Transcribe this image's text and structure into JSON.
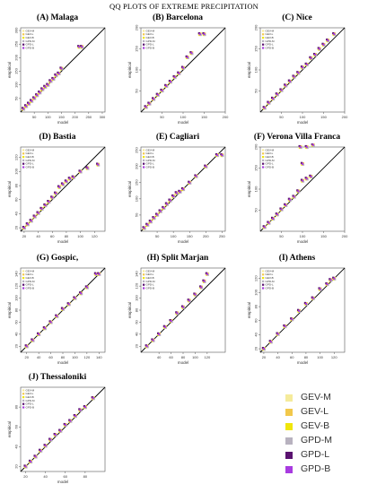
{
  "figure_title": "QQ PLOTS OF EXTREME PRECIPITATION",
  "legend": [
    {
      "label": "GEV-M",
      "color": "#f5eb9b"
    },
    {
      "label": "GEV-L",
      "color": "#f2c84b"
    },
    {
      "label": "GEV-B",
      "color": "#f0e60a"
    },
    {
      "label": "GPD-M",
      "color": "#b8b2bf"
    },
    {
      "label": "GPD-L",
      "color": "#5a1270"
    },
    {
      "label": "GPD-B",
      "color": "#a83be0"
    }
  ],
  "chart_data": [
    {
      "type": "scatter",
      "title": "(A) Malaga",
      "xlabel": "model",
      "ylabel": "empirical",
      "xlim": [
        0,
        310
      ],
      "ylim": [
        0,
        310
      ],
      "xticks": [
        50,
        100,
        150,
        200,
        250,
        300
      ],
      "yticks": [
        50,
        100,
        150,
        200,
        250,
        300
      ],
      "points": [
        [
          10,
          12
        ],
        [
          20,
          22
        ],
        [
          30,
          31
        ],
        [
          40,
          41
        ],
        [
          50,
          51
        ],
        [
          60,
          62
        ],
        [
          70,
          72
        ],
        [
          80,
          84
        ],
        [
          90,
          93
        ],
        [
          100,
          100
        ],
        [
          110,
          114
        ],
        [
          120,
          122
        ],
        [
          130,
          135
        ],
        [
          140,
          142
        ],
        [
          150,
          160
        ],
        [
          215,
          240
        ],
        [
          225,
          240
        ]
      ]
    },
    {
      "type": "scatter",
      "title": "(B) Barcelona",
      "xlabel": "model",
      "ylabel": "empirical",
      "xlim": [
        0,
        200
      ],
      "ylim": [
        0,
        200
      ],
      "xticks": [
        50,
        100,
        150,
        200
      ],
      "yticks": [
        50,
        100,
        150,
        200
      ],
      "points": [
        [
          12,
          12
        ],
        [
          20,
          20
        ],
        [
          30,
          31
        ],
        [
          40,
          41
        ],
        [
          50,
          51
        ],
        [
          60,
          62
        ],
        [
          70,
          72
        ],
        [
          80,
          83
        ],
        [
          90,
          92
        ],
        [
          100,
          105
        ],
        [
          110,
          130
        ],
        [
          120,
          140
        ],
        [
          140,
          185
        ],
        [
          150,
          185
        ]
      ]
    },
    {
      "type": "scatter",
      "title": "(C) Nice",
      "xlabel": "model",
      "ylabel": "empirical",
      "xlim": [
        0,
        200
      ],
      "ylim": [
        0,
        200
      ],
      "xticks": [
        50,
        100,
        150,
        200
      ],
      "yticks": [
        50,
        100,
        150,
        200
      ],
      "points": [
        [
          10,
          10
        ],
        [
          20,
          22
        ],
        [
          30,
          32
        ],
        [
          40,
          42
        ],
        [
          50,
          52
        ],
        [
          60,
          63
        ],
        [
          70,
          73
        ],
        [
          80,
          84
        ],
        [
          90,
          93
        ],
        [
          100,
          106
        ],
        [
          110,
          113
        ],
        [
          120,
          128
        ],
        [
          130,
          136
        ],
        [
          140,
          150
        ],
        [
          150,
          160
        ],
        [
          160,
          170
        ],
        [
          175,
          185
        ]
      ]
    },
    {
      "type": "scatter",
      "title": "(D) Bastia",
      "xlabel": "model",
      "ylabel": "empirical",
      "xlim": [
        15,
        135
      ],
      "ylim": [
        15,
        135
      ],
      "xticks": [
        20,
        40,
        60,
        80,
        100,
        120
      ],
      "yticks": [
        20,
        40,
        60,
        80,
        100,
        120
      ],
      "points": [
        [
          20,
          20
        ],
        [
          25,
          25
        ],
        [
          30,
          30
        ],
        [
          35,
          36
        ],
        [
          40,
          41
        ],
        [
          45,
          47
        ],
        [
          50,
          52
        ],
        [
          55,
          57
        ],
        [
          60,
          63
        ],
        [
          65,
          69
        ],
        [
          70,
          78
        ],
        [
          75,
          82
        ],
        [
          80,
          86
        ],
        [
          85,
          90
        ],
        [
          90,
          92
        ],
        [
          100,
          100
        ],
        [
          110,
          105
        ],
        [
          125,
          110
        ]
      ]
    },
    {
      "type": "scatter",
      "title": "(E) Cagliari",
      "xlabel": "model",
      "ylabel": "empirical",
      "xlim": [
        0,
        260
      ],
      "ylim": [
        0,
        260
      ],
      "xticks": [
        50,
        100,
        150,
        200,
        250
      ],
      "yticks": [
        50,
        100,
        150,
        200,
        250
      ],
      "points": [
        [
          10,
          10
        ],
        [
          20,
          20
        ],
        [
          30,
          30
        ],
        [
          40,
          41
        ],
        [
          50,
          51
        ],
        [
          60,
          62
        ],
        [
          70,
          72
        ],
        [
          80,
          84
        ],
        [
          90,
          95
        ],
        [
          100,
          108
        ],
        [
          110,
          118
        ],
        [
          120,
          122
        ],
        [
          130,
          130
        ],
        [
          150,
          150
        ],
        [
          170,
          170
        ],
        [
          200,
          200
        ],
        [
          235,
          235
        ],
        [
          250,
          235
        ]
      ]
    },
    {
      "type": "scatter",
      "title": "(F) Verona Villa Franca",
      "xlabel": "model",
      "ylabel": "empirical",
      "xlim": [
        0,
        200
      ],
      "ylim": [
        0,
        200
      ],
      "xticks": [
        50,
        100,
        150,
        200
      ],
      "yticks": [
        50,
        100,
        150,
        200
      ],
      "points": [
        [
          10,
          10
        ],
        [
          20,
          20
        ],
        [
          30,
          30
        ],
        [
          40,
          40
        ],
        [
          50,
          52
        ],
        [
          60,
          62
        ],
        [
          70,
          75
        ],
        [
          80,
          82
        ],
        [
          90,
          95
        ],
        [
          100,
          120
        ],
        [
          110,
          125
        ],
        [
          120,
          130
        ],
        [
          100,
          160
        ],
        [
          95,
          200
        ],
        [
          110,
          200
        ],
        [
          125,
          205
        ]
      ]
    },
    {
      "type": "scatter",
      "title": "(G) Gospic,",
      "xlabel": "model",
      "ylabel": "empirical",
      "xlim": [
        10,
        150
      ],
      "ylim": [
        10,
        150
      ],
      "xticks": [
        20,
        40,
        60,
        80,
        100,
        120,
        140
      ],
      "yticks": [
        20,
        40,
        60,
        80,
        100,
        120,
        140
      ],
      "points": [
        [
          20,
          20
        ],
        [
          30,
          30
        ],
        [
          40,
          40
        ],
        [
          50,
          50
        ],
        [
          60,
          60
        ],
        [
          70,
          70
        ],
        [
          80,
          82
        ],
        [
          90,
          90
        ],
        [
          100,
          100
        ],
        [
          110,
          108
        ],
        [
          120,
          118
        ],
        [
          135,
          140
        ],
        [
          140,
          140
        ]
      ]
    },
    {
      "type": "scatter",
      "title": "(H) Split Marjan",
      "xlabel": "model",
      "ylabel": "empirical",
      "xlim": [
        10,
        150
      ],
      "ylim": [
        10,
        150
      ],
      "xticks": [
        40,
        60,
        80,
        100,
        120
      ],
      "yticks": [
        20,
        40,
        60,
        80,
        100,
        120,
        140
      ],
      "points": [
        [
          20,
          20
        ],
        [
          30,
          30
        ],
        [
          40,
          40
        ],
        [
          50,
          52
        ],
        [
          60,
          62
        ],
        [
          70,
          75
        ],
        [
          80,
          85
        ],
        [
          90,
          96
        ],
        [
          100,
          106
        ],
        [
          110,
          118
        ],
        [
          115,
          128
        ],
        [
          120,
          140
        ]
      ]
    },
    {
      "type": "scatter",
      "title": "(I) Athens",
      "xlabel": "model",
      "ylabel": "empirical",
      "xlim": [
        15,
        135
      ],
      "ylim": [
        15,
        135
      ],
      "xticks": [
        20,
        40,
        60,
        80,
        100,
        120
      ],
      "yticks": [
        20,
        40,
        60,
        80,
        100,
        120
      ],
      "points": [
        [
          20,
          20
        ],
        [
          30,
          30
        ],
        [
          40,
          41
        ],
        [
          50,
          52
        ],
        [
          60,
          62
        ],
        [
          70,
          74
        ],
        [
          80,
          84
        ],
        [
          90,
          92
        ],
        [
          100,
          105
        ],
        [
          110,
          112
        ],
        [
          115,
          118
        ],
        [
          120,
          120
        ]
      ]
    },
    {
      "type": "scatter",
      "title": "(J) Thessaloniki",
      "xlabel": "model",
      "ylabel": "empirical",
      "xlim": [
        15,
        100
      ],
      "ylim": [
        15,
        100
      ],
      "xticks": [
        20,
        40,
        60,
        80
      ],
      "yticks": [
        20,
        40,
        60,
        80
      ],
      "points": [
        [
          20,
          20
        ],
        [
          25,
          25
        ],
        [
          30,
          30
        ],
        [
          35,
          36
        ],
        [
          40,
          41
        ],
        [
          45,
          47
        ],
        [
          50,
          52
        ],
        [
          55,
          56
        ],
        [
          60,
          62
        ],
        [
          65,
          66
        ],
        [
          70,
          71
        ],
        [
          75,
          77
        ],
        [
          80,
          80
        ],
        [
          88,
          89
        ]
      ]
    }
  ]
}
